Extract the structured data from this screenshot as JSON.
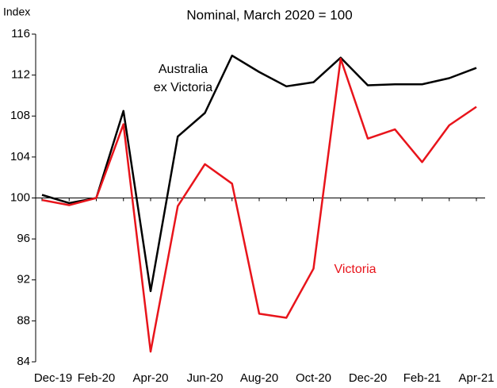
{
  "chart_data": {
    "type": "line",
    "title": "Nominal, March 2020 = 100",
    "y_label": "Index",
    "categories": [
      "Dec-19",
      null,
      "Feb-20",
      null,
      "Apr-20",
      null,
      "Jun-20",
      null,
      "Aug-20",
      null,
      "Oct-20",
      null,
      "Dec-20",
      null,
      "Feb-21",
      null,
      "Apr-21"
    ],
    "series": [
      {
        "label": [
          "Australia",
          "ex Victoria"
        ],
        "color": "#000000",
        "values": [
          100.3,
          99.5,
          100,
          108.5,
          90.9,
          106,
          108.3,
          113.9,
          112.3,
          110.9,
          111.3,
          113.7,
          111,
          111.1,
          111.1,
          111.7,
          112.7
        ]
      },
      {
        "label": [
          "Victoria"
        ],
        "color": "#e8141b",
        "values": [
          99.8,
          99.3,
          100,
          107.2,
          85,
          99.2,
          103.3,
          101.4,
          88.7,
          88.3,
          93.1,
          113.6,
          105.8,
          106.7,
          103.5,
          107.1,
          108.9
        ]
      }
    ],
    "ylim": [
      84,
      116
    ],
    "yticks": [
      84,
      88,
      92,
      96,
      100,
      104,
      108,
      112,
      116
    ],
    "baseline": 100
  }
}
